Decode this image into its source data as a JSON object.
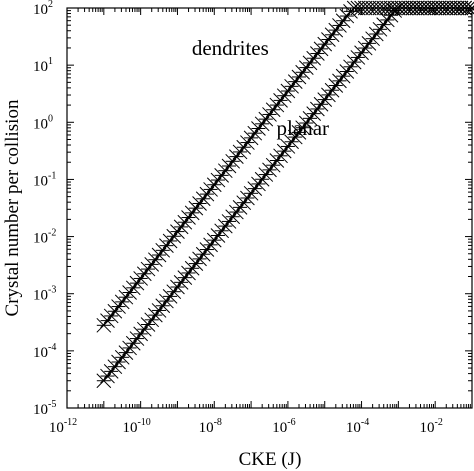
{
  "chart_data": {
    "type": "scatter",
    "title": "",
    "xlabel": "CKE (J)",
    "ylabel": "Crystal number per collision",
    "xscale": "log",
    "yscale": "log",
    "xlim": [
      1e-12,
      0.1
    ],
    "ylim": [
      1e-05,
      100
    ],
    "x_ticks": [
      {
        "base": "10",
        "exp": "-12"
      },
      {
        "base": "10",
        "exp": "-10"
      },
      {
        "base": "10",
        "exp": "-8"
      },
      {
        "base": "10",
        "exp": "-6"
      },
      {
        "base": "10",
        "exp": "-4"
      },
      {
        "base": "10",
        "exp": "-2"
      }
    ],
    "x_tick_values": [
      1e-12,
      1e-10,
      1e-08,
      1e-06,
      0.0001,
      0.01
    ],
    "y_ticks": [
      {
        "base": "10",
        "exp": "2"
      },
      {
        "base": "10",
        "exp": "1"
      },
      {
        "base": "10",
        "exp": "0"
      },
      {
        "base": "10",
        "exp": "-1"
      },
      {
        "base": "10",
        "exp": "-2"
      },
      {
        "base": "10",
        "exp": "-3"
      },
      {
        "base": "10",
        "exp": "-4"
      },
      {
        "base": "10",
        "exp": "-5"
      }
    ],
    "y_tick_values": [
      100,
      10,
      1,
      0.1,
      0.01,
      0.001,
      0.0001,
      1e-05
    ],
    "grid": false,
    "marker": "asterisk",
    "series": [
      {
        "x_range": [
          1e-11,
          0.1
        ],
        "points_per_decade": 10,
        "y_at_x_start": 0.00028,
        "log_slope": 0.82,
        "y_cap": 100
      },
      {
        "x_range": [
          1e-11,
          0.1
        ],
        "points_per_decade": 10,
        "y_at_x_start": 3e-05,
        "log_slope": 0.82,
        "y_cap": 100
      }
    ],
    "annotations": [
      {
        "text": "dendrites",
        "x": 3e-08,
        "y": 15
      },
      {
        "text": "planar",
        "x": 6e-06,
        "y": 0.6
      }
    ]
  }
}
